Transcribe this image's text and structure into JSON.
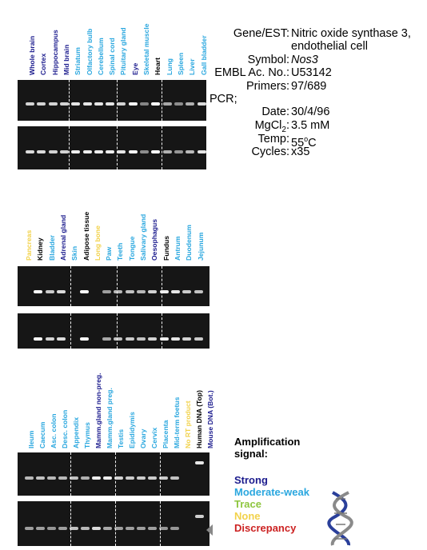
{
  "colors": {
    "strong": "#1c1c8e",
    "moderate": "#2aa7df",
    "trace": "#8ec63f",
    "none": "#f2d24b",
    "discrepancy": "#cc2222",
    "black": "#000000"
  },
  "panel1": {
    "lanes": [
      {
        "label": "Whole brain",
        "level": "strong"
      },
      {
        "label": "Cortex",
        "level": "strong"
      },
      {
        "label": "Hippocampus",
        "level": "strong"
      },
      {
        "label": "Mid brain",
        "level": "strong"
      },
      {
        "label": "Striatum",
        "level": "moderate"
      },
      {
        "label": "Olfactory bulb",
        "level": "moderate"
      },
      {
        "label": "Cerebellum",
        "level": "moderate"
      },
      {
        "label": "Spinal cord",
        "level": "moderate"
      },
      {
        "label": "Pituitary gland",
        "level": "moderate"
      },
      {
        "label": "Eye",
        "level": "strong"
      },
      {
        "label": "Skeletal muscle",
        "level": "moderate"
      },
      {
        "label": "Heart",
        "level": "black"
      },
      {
        "label": "Lung",
        "level": "moderate"
      },
      {
        "label": "Spleen",
        "level": "moderate"
      },
      {
        "label": "Liver",
        "level": "moderate"
      },
      {
        "label": "Gall bladder",
        "level": "moderate"
      }
    ],
    "gel1_intensity": [
      0.75,
      0.75,
      0.75,
      0.75,
      0.85,
      0.85,
      0.85,
      0.85,
      0.75,
      0.95,
      0.3,
      1.0,
      0.5,
      0.35,
      0.55,
      0.8
    ],
    "gel2_intensity": [
      0.8,
      0.8,
      0.75,
      0.75,
      0.9,
      0.9,
      0.9,
      0.9,
      0.85,
      0.95,
      0.35,
      1.0,
      0.55,
      0.4,
      0.6,
      0.85
    ]
  },
  "panel2": {
    "lanes": [
      {
        "label": "Pancreas",
        "level": "none"
      },
      {
        "label": "Kidney",
        "level": "black"
      },
      {
        "label": "Bladder",
        "level": "moderate"
      },
      {
        "label": "Adrenal gland",
        "level": "strong"
      },
      {
        "label": "Skin",
        "level": "moderate"
      },
      {
        "label": "Adipose tissue",
        "level": "black"
      },
      {
        "label": "Long bone",
        "level": "none"
      },
      {
        "label": "Paw",
        "level": "moderate"
      },
      {
        "label": "Teeth",
        "level": "moderate"
      },
      {
        "label": "Tongue",
        "level": "moderate"
      },
      {
        "label": "Salivary gland",
        "level": "moderate"
      },
      {
        "label": "Oesophagus",
        "level": "strong"
      },
      {
        "label": "Fundus",
        "level": "black"
      },
      {
        "label": "Antrum",
        "level": "moderate"
      },
      {
        "label": "Duodenum",
        "level": "moderate"
      },
      {
        "label": "Jejunum",
        "level": "moderate"
      }
    ],
    "gel1_intensity": [
      0.0,
      1.0,
      0.7,
      0.8,
      0.0,
      1.0,
      0.0,
      0.45,
      0.6,
      0.65,
      0.6,
      0.75,
      0.9,
      0.85,
      0.7,
      0.65
    ],
    "gel2_intensity": [
      0.0,
      1.0,
      0.75,
      0.8,
      0.0,
      1.0,
      0.0,
      0.5,
      0.65,
      0.7,
      0.65,
      0.75,
      0.9,
      0.85,
      0.75,
      0.7
    ]
  },
  "panel3": {
    "lanes": [
      {
        "label": "Ileum",
        "level": "moderate"
      },
      {
        "label": "Caecum",
        "level": "moderate"
      },
      {
        "label": "Asc. colon",
        "level": "moderate"
      },
      {
        "label": "Desc. colon",
        "level": "moderate"
      },
      {
        "label": "Appendix",
        "level": "moderate"
      },
      {
        "label": "Thymus",
        "level": "moderate"
      },
      {
        "label": "Mamm.gland non-preg.",
        "level": "strong"
      },
      {
        "label": "Mamm.gland preg.",
        "level": "moderate"
      },
      {
        "label": "Testis",
        "level": "moderate"
      },
      {
        "label": "Epididymis",
        "level": "moderate"
      },
      {
        "label": "Ovary",
        "level": "moderate"
      },
      {
        "label": "Cervix",
        "level": "moderate"
      },
      {
        "label": "Placenta",
        "level": "moderate"
      },
      {
        "label": "Mid-term foetus",
        "level": "moderate"
      },
      {
        "label": "No RT product",
        "level": "none"
      },
      {
        "label": "Human DNA (Top)",
        "level": "black"
      },
      {
        "label": "Mouse DNA (Bot.)",
        "level": "strong"
      }
    ],
    "gel1_intensity": [
      0.6,
      0.65,
      0.6,
      0.6,
      0.65,
      0.55,
      0.9,
      0.9,
      0.75,
      0.7,
      0.7,
      0.7,
      0.7,
      0.65,
      0.0,
      0.0,
      0.0
    ],
    "gel2_intensity": [
      0.45,
      0.45,
      0.4,
      0.45,
      0.65,
      0.6,
      0.8,
      0.5,
      0.45,
      0.45,
      0.45,
      0.45,
      0.4,
      0.4,
      0.0,
      0.0,
      0.0
    ]
  },
  "info": {
    "gene_key": "Gene/EST:",
    "gene_val_1": "Nitric oxide synthase 3,",
    "gene_val_2": "endothelial cell",
    "symbol_key": "Symbol:",
    "symbol_val": "Nos3",
    "embl_key": "EMBL Ac. No.:",
    "embl_val": "U53142",
    "primers_key": "Primers:",
    "primers_val": "97/689",
    "pcr_label": "PCR;",
    "date_key": "Date:",
    "date_val": "30/4/96",
    "mg_key_prefix": "MgCl",
    "mg_key_sub": "2",
    "mg_key_suffix": ":",
    "mg_val": "3.5 mM",
    "temp_key": "Temp:",
    "temp_val_num": "55",
    "temp_val_sup": "o",
    "temp_val_unit": "C",
    "cycles_key": "Cycles:",
    "cycles_val": "x35"
  },
  "legend": {
    "title_1": "Amplification",
    "title_2": "signal:",
    "strong": "Strong",
    "moderate": "Moderate-weak",
    "trace": "Trace",
    "none": "None",
    "discrepancy": "Discrepancy"
  }
}
